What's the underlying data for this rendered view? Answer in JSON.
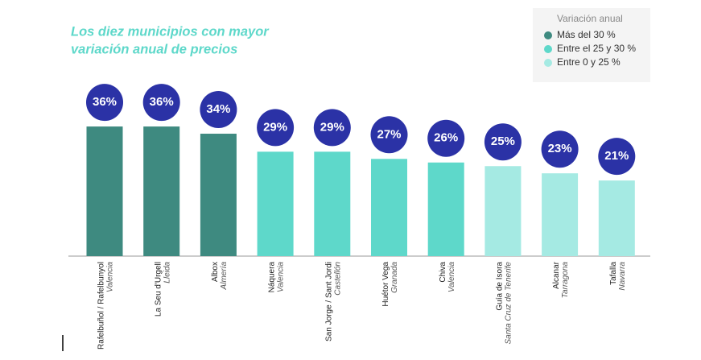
{
  "chart_data": {
    "type": "bar",
    "title": [
      "Los diez municipios con mayor",
      "variación anual de precios"
    ],
    "legend": {
      "title": "Variación anual",
      "items": [
        {
          "name": "Más del 30 %",
          "color": "#3e8a80"
        },
        {
          "name": "Entre el 25 y 30 %",
          "color": "#5ed8ca"
        },
        {
          "name": "Entre 0 y 25 %",
          "color": "#a5eae3"
        }
      ]
    },
    "categories": [
      {
        "name": "Rafelbuñol / Rafelbunyol",
        "province": "Valencia"
      },
      {
        "name": "La Seu d'Urgell",
        "province": "Lleida"
      },
      {
        "name": "Albox",
        "province": "Almería"
      },
      {
        "name": "Náquera",
        "province": "Valencia"
      },
      {
        "name": "San Jorge / Sant Jordi",
        "province": "Castellón"
      },
      {
        "name": "Huétor Vega",
        "province": "Granada"
      },
      {
        "name": "Chiva",
        "province": "Valencia"
      },
      {
        "name": "Guía de Isora",
        "province": "Santa Cruz de Tenerife"
      },
      {
        "name": "Alcanar",
        "province": "Tarragona"
      },
      {
        "name": "Tafalla",
        "province": "Navarra"
      }
    ],
    "values": [
      36,
      36,
      34,
      29,
      29,
      27,
      26,
      25,
      23,
      21
    ],
    "value_labels": [
      "36%",
      "36%",
      "34%",
      "29%",
      "29%",
      "27%",
      "26%",
      "25%",
      "23%",
      "21%"
    ],
    "colors": [
      "#3e8a80",
      "#3e8a80",
      "#3e8a80",
      "#5ed8ca",
      "#5ed8ca",
      "#5ed8ca",
      "#5ed8ca",
      "#a5eae3",
      "#a5eae3",
      "#a5eae3"
    ],
    "label_color": "#2b32a6"
  }
}
